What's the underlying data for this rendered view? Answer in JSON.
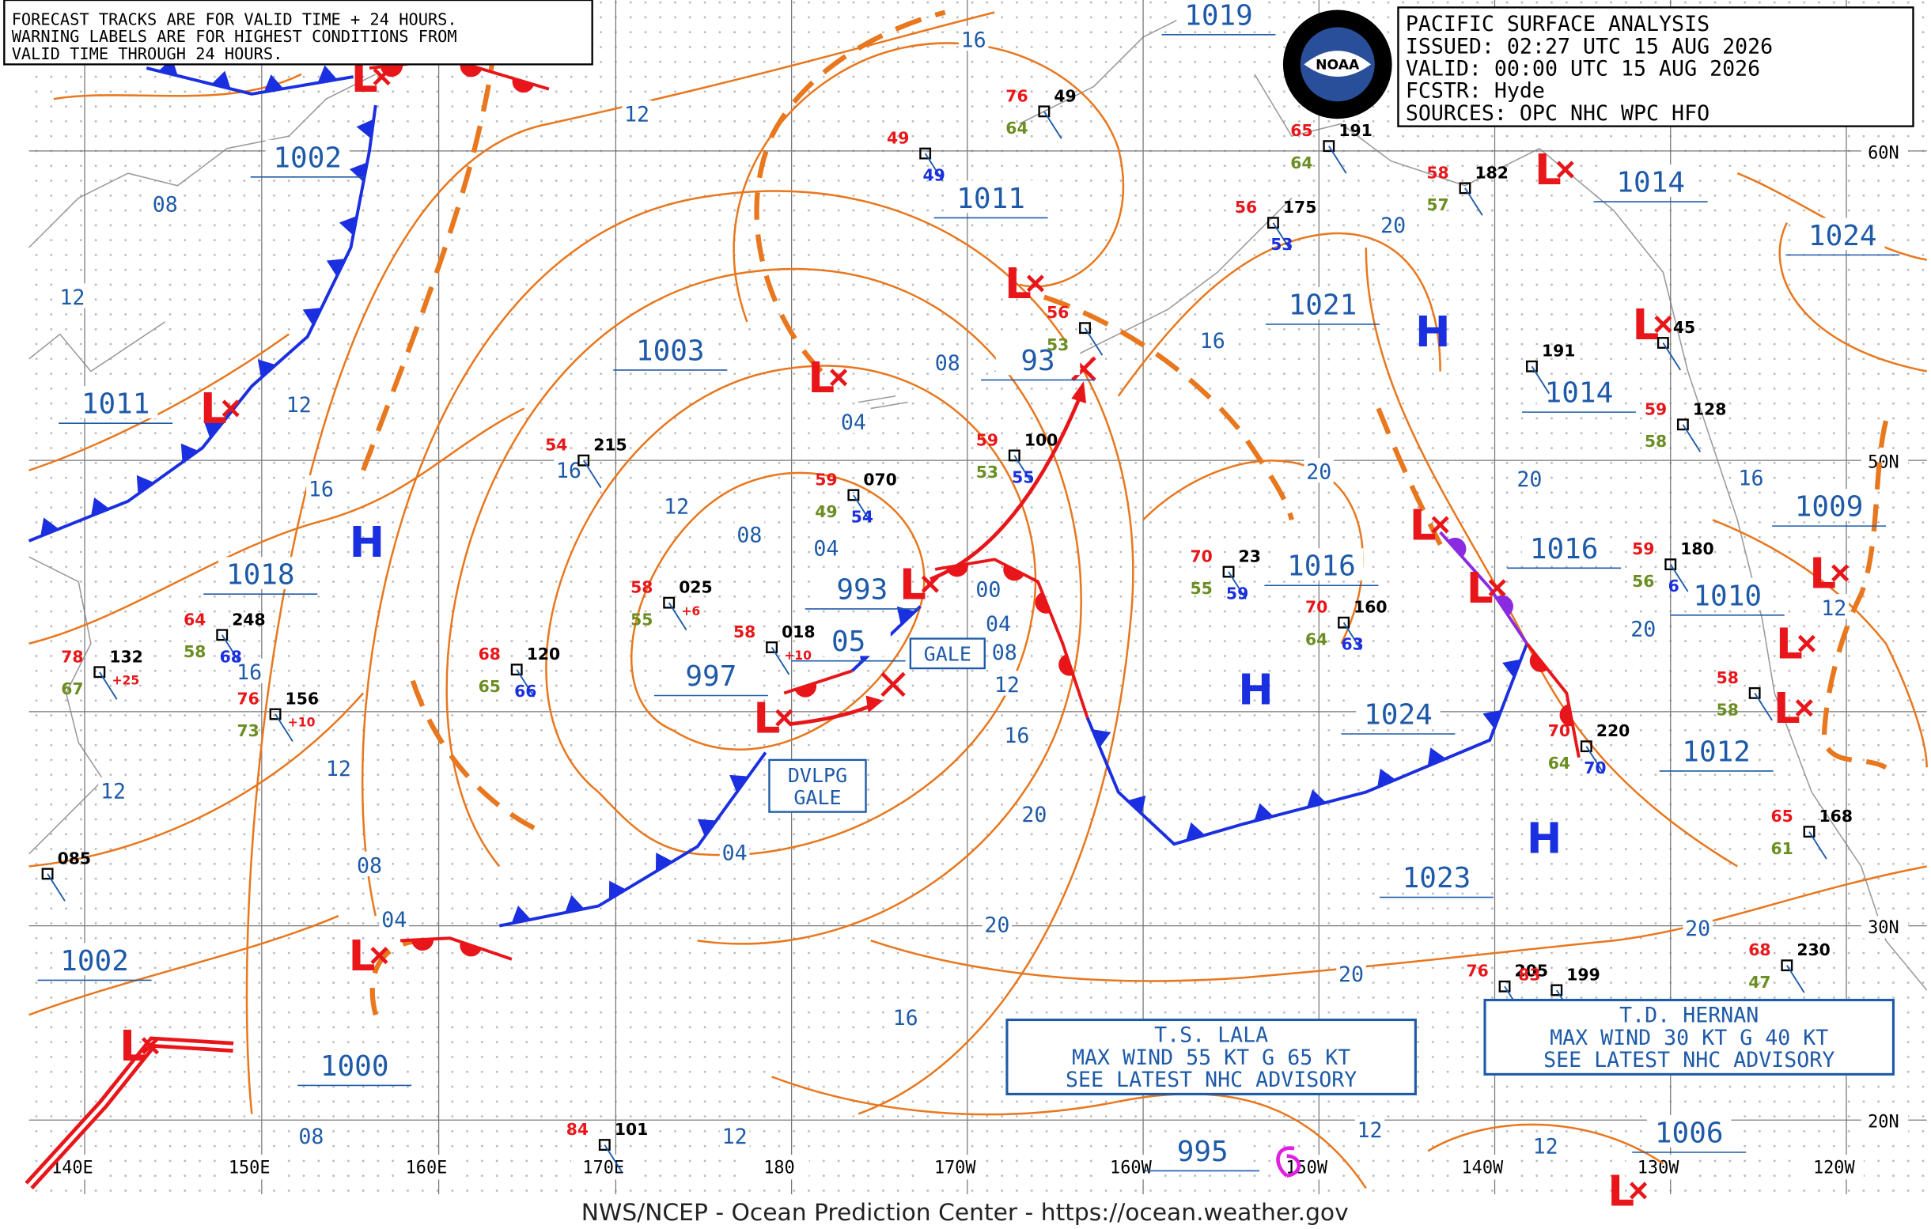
{
  "notice": [
    "FORECAST TRACKS ARE FOR VALID TIME + 24 HOURS.",
    "WARNING LABELS ARE FOR HIGHEST CONDITIONS FROM",
    "VALID TIME THROUGH 24 HOURS."
  ],
  "title_block": [
    "PACIFIC SURFACE ANALYSIS",
    "ISSUED: 02:27 UTC 15 AUG 2026",
    "VALID:  00:00 UTC 15 AUG 2026",
    "FCSTR:  Hyde",
    "SOURCES: OPC NHC WPC HFO"
  ],
  "logo_text": "NOAA",
  "longitudes": [
    "140E",
    "150E",
    "160E",
    "170E",
    "180",
    "170W",
    "160W",
    "150W",
    "140W",
    "130W",
    "120W"
  ],
  "latitudes": [
    "60N",
    "50N",
    "30N",
    "20N"
  ],
  "pressure_centers": [
    "1019",
    "1002",
    "1011",
    "1011",
    "1003",
    "1018",
    "993",
    "05",
    "997",
    "1000",
    "1002",
    "995",
    "1021",
    "1016",
    "1024",
    "1023",
    "1014",
    "1014",
    "1016",
    "1009",
    "1010",
    "1012",
    "1006",
    "1024",
    "93"
  ],
  "high_symbol": "H",
  "low_symbol": "L",
  "isobar_labels": [
    "16",
    "12",
    "08",
    "12",
    "12",
    "16",
    "16",
    "12",
    "08",
    "04",
    "04",
    "08",
    "00",
    "04",
    "08",
    "12",
    "16",
    "20",
    "20",
    "16",
    "12",
    "08",
    "04",
    "08",
    "12",
    "12",
    "16",
    "04",
    "16",
    "20",
    "20",
    "20",
    "16",
    "20",
    "20",
    "20",
    "12",
    "12",
    "12"
  ],
  "warnings": {
    "gale": "GALE",
    "developing_gale": [
      "DVLPG",
      "GALE"
    ]
  },
  "advisories": [
    [
      "T.S. LALA",
      "MAX WIND 55 KT G 65 KT",
      "SEE LATEST NHC ADVISORY"
    ],
    [
      "T.D. HERNAN",
      "MAX WIND 30 KT G 40 KT",
      "SEE LATEST NHC ADVISORY"
    ]
  ],
  "stations": [
    {
      "t": "49",
      "v": "49"
    },
    {
      "t": "76",
      "p": "49",
      "d": "64"
    },
    {
      "t": "65",
      "p": "191",
      "d": "64"
    },
    {
      "t": "56",
      "p": "175",
      "v": "53"
    },
    {
      "t": "58",
      "p": "182",
      "d": "57"
    },
    {
      "t": "54",
      "p": "215"
    },
    {
      "t": "59",
      "p": "070",
      "d": "49",
      "v": "54"
    },
    {
      "t": "59",
      "p": "100",
      "d": "53",
      "v": "55"
    },
    {
      "t": "58",
      "p": "025",
      "d": "55",
      "tend": "+6"
    },
    {
      "t": "68",
      "p": "120",
      "d": "65",
      "v": "66"
    },
    {
      "t": "64",
      "p": "248",
      "d": "58",
      "v": "68"
    },
    {
      "t": "78",
      "p": "132",
      "d": "67",
      "tend": "+25"
    },
    {
      "t": "76",
      "p": "156",
      "d": "73",
      "tend": "+10"
    },
    {
      "t": "70",
      "p": "23",
      "d": "55",
      "v": "59"
    },
    {
      "t": "70",
      "p": "160",
      "d": "64",
      "v": "63"
    },
    {
      "t": "59",
      "p": "180",
      "d": "56",
      "v": "6"
    },
    {
      "t": "59",
      "p": "128",
      "d": "58"
    },
    {
      "t": "70",
      "p": "220",
      "d": "64",
      "v": "70"
    },
    {
      "t": "65",
      "p": "168",
      "d": "61"
    },
    {
      "t": "68",
      "p": "230",
      "d": "47"
    },
    {
      "t": "76",
      "p": "205"
    },
    {
      "t": "84",
      "p": "101"
    },
    {
      "p": "085"
    },
    {
      "p": "191"
    },
    {
      "p": "45"
    },
    {
      "t": "58",
      "d": "58"
    },
    {
      "t": "56",
      "d": "53"
    },
    {
      "t": "83",
      "p": "199"
    },
    {
      "t": "58",
      "p": "018",
      "tend": "+10"
    }
  ],
  "footer": "NWS/NCEP - Ocean Prediction Center - https://ocean.weather.gov"
}
